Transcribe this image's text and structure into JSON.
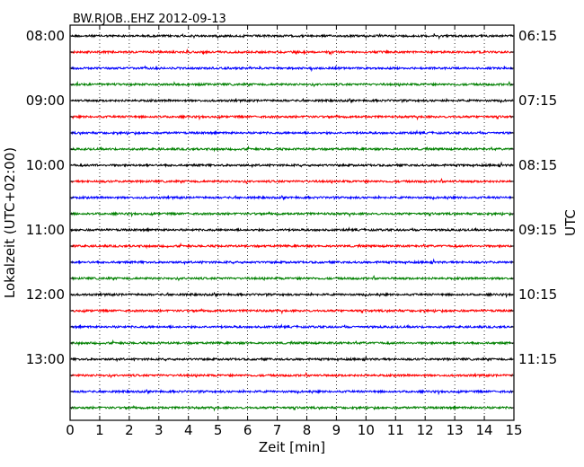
{
  "chart_data": {
    "type": "line",
    "title": "BW.RJOB..EHZ 2012-09-13",
    "xlabel": "Zeit  [min]",
    "ylabel_left": "Lokalzeit (UTC+02:00)",
    "ylabel_right": "UTC",
    "xlim": [
      0,
      15
    ],
    "x_ticks": [
      0,
      1,
      2,
      3,
      4,
      5,
      6,
      7,
      8,
      9,
      10,
      11,
      12,
      13,
      14,
      15
    ],
    "x_tick_labels": [
      "0",
      "1",
      "2",
      "3",
      "4",
      "5",
      "6",
      "7",
      "8",
      "9",
      "10",
      "11",
      "12",
      "13",
      "14",
      "15"
    ],
    "grid_vertical": "dotted",
    "trace_count": 24,
    "trace_colors": [
      "#000000",
      "#ff0000",
      "#0000ff",
      "#008000"
    ],
    "left_tick_labels": [
      "08:00",
      "09:00",
      "10:00",
      "11:00",
      "12:00",
      "13:00"
    ],
    "right_tick_labels": [
      "06:15",
      "07:15",
      "08:15",
      "09:15",
      "10:15",
      "11:15"
    ]
  }
}
